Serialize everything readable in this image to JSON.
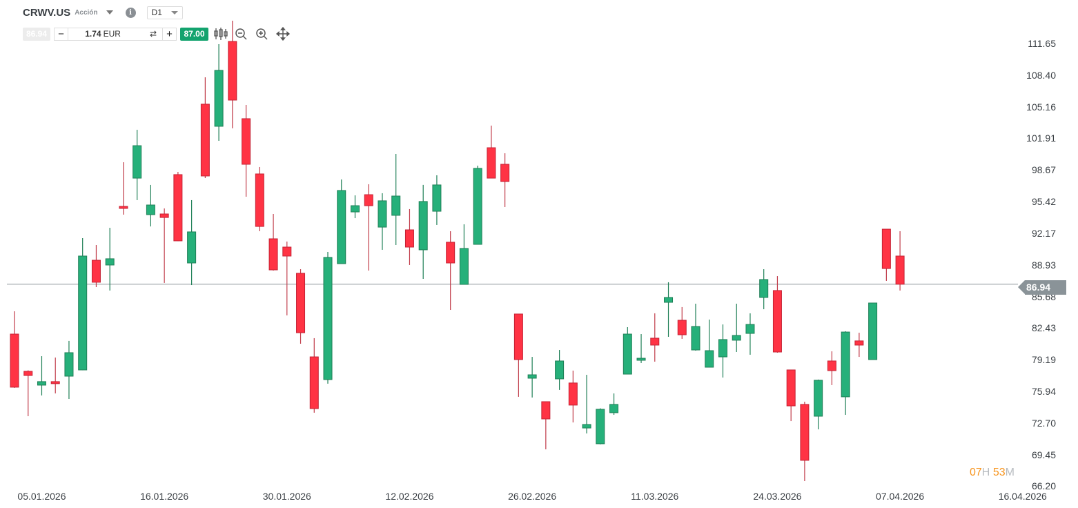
{
  "header": {
    "symbol": "CRWV.US",
    "instrument_type": "Acción",
    "timeframe": "D1",
    "info_icon": "i"
  },
  "trade_bar": {
    "sell_price": "86.94",
    "minus_label": "−",
    "volume_value": "1.74",
    "volume_currency": "EUR",
    "plus_label": "+",
    "buy_price": "87.00",
    "icons": [
      "candlestick-icon",
      "zoom-out-icon",
      "zoom-in-icon",
      "move-icon"
    ]
  },
  "countdown": {
    "hours": "07",
    "h": "H",
    "minutes": "53",
    "m": "M"
  },
  "colors": {
    "up": "#26b07a",
    "down": "#ff3344",
    "price_line": "#8a9398",
    "countdown": "#f7941d",
    "buy": "#13a36e"
  },
  "chart_data": {
    "type": "candlestick",
    "current_price": "86.94",
    "y_ticks": [
      "111.65",
      "108.40",
      "105.16",
      "101.91",
      "98.67",
      "95.42",
      "92.17",
      "88.93",
      "85.68",
      "82.43",
      "79.19",
      "75.94",
      "72.70",
      "69.45",
      "66.20"
    ],
    "ylim": [
      66.2,
      111.65
    ],
    "x_ticks": [
      "05.01.2026",
      "16.01.2026",
      "30.01.2026",
      "12.02.2026",
      "26.02.2026",
      "11.03.2026",
      "24.03.2026",
      "07.04.2026",
      "16.04.2026"
    ],
    "dates": [
      "31.12.2025",
      "02.01.2026",
      "05.01.2026",
      "06.01.2026",
      "07.01.2026",
      "08.01.2026",
      "09.01.2026",
      "12.01.2026",
      "13.01.2026",
      "14.01.2026",
      "15.01.2026",
      "16.01.2026",
      "20.01.2026",
      "21.01.2026",
      "22.01.2026",
      "23.01.2026",
      "26.01.2026",
      "27.01.2026",
      "28.01.2026",
      "29.01.2026",
      "30.01.2026",
      "02.02.2026",
      "03.02.2026",
      "04.02.2026",
      "05.02.2026",
      "06.02.2026",
      "09.02.2026",
      "10.02.2026",
      "11.02.2026",
      "12.02.2026",
      "13.02.2026",
      "17.02.2026",
      "18.02.2026",
      "19.02.2026",
      "20.02.2026",
      "23.02.2026",
      "24.02.2026",
      "25.02.2026",
      "26.02.2026",
      "27.02.2026",
      "02.03.2026",
      "03.03.2026",
      "04.03.2026",
      "05.03.2026",
      "06.03.2026",
      "09.03.2026",
      "10.03.2026",
      "11.03.2026",
      "12.03.2026",
      "13.03.2026",
      "16.03.2026",
      "17.03.2026",
      "18.03.2026",
      "19.03.2026",
      "20.03.2026",
      "23.03.2026",
      "24.03.2026",
      "25.03.2026",
      "26.03.2026",
      "27.03.2026",
      "30.03.2026",
      "31.03.2026",
      "01.04.2026",
      "02.04.2026",
      "06.04.2026",
      "07.04.2026"
    ],
    "ohlc": [
      [
        81.82,
        84.16,
        76.3,
        76.37
      ],
      [
        78.0,
        78.1,
        73.39,
        77.57
      ],
      [
        76.58,
        79.55,
        75.52,
        76.94
      ],
      [
        76.94,
        79.41,
        75.73,
        76.73
      ],
      [
        77.5,
        81.12,
        75.16,
        79.91
      ],
      [
        78.14,
        91.67,
        78.1,
        89.83
      ],
      [
        89.4,
        90.96,
        86.64,
        87.14
      ],
      [
        88.91,
        92.73,
        86.29,
        89.55
      ],
      [
        94.93,
        99.46,
        94.08,
        94.72
      ],
      [
        97.83,
        102.79,
        95.57,
        101.16
      ],
      [
        94.08,
        97.13,
        92.87,
        95.07
      ],
      [
        94.15,
        94.72,
        87.07,
        93.79
      ],
      [
        98.19,
        98.47,
        91.35,
        91.39
      ],
      [
        89.12,
        95.57,
        86.85,
        92.31
      ],
      [
        105.42,
        108.18,
        97.83,
        98.05
      ],
      [
        103.15,
        111.58,
        101.66,
        108.89
      ],
      [
        111.86,
        113.99,
        102.94,
        105.84
      ],
      [
        103.93,
        105.34,
        95.92,
        99.25
      ],
      [
        98.26,
        98.97,
        92.38,
        92.87
      ],
      [
        91.6,
        94.15,
        88.34,
        88.41
      ],
      [
        90.75,
        91.32,
        83.74,
        89.83
      ],
      [
        88.06,
        88.48,
        80.83,
        81.96
      ],
      [
        79.48,
        81.4,
        73.75,
        74.17
      ],
      [
        77.15,
        90.25,
        76.73,
        89.69
      ],
      [
        89.05,
        97.69,
        89.05,
        96.56
      ],
      [
        94.36,
        96.06,
        93.72,
        95.0
      ],
      [
        96.13,
        97.2,
        88.34,
        95.0
      ],
      [
        92.8,
        96.28,
        90.47,
        95.5
      ],
      [
        94.01,
        100.31,
        90.96,
        95.99
      ],
      [
        92.52,
        94.65,
        88.91,
        90.75
      ],
      [
        90.47,
        97.13,
        87.49,
        95.43
      ],
      [
        94.43,
        98.12,
        93.02,
        97.13
      ],
      [
        91.25,
        92.38,
        84.3,
        89.12
      ],
      [
        86.92,
        93.09,
        86.92,
        90.61
      ],
      [
        91.03,
        99.11,
        91.03,
        98.83
      ],
      [
        100.95,
        103.22,
        97.83,
        97.83
      ],
      [
        99.25,
        100.38,
        94.86,
        97.48
      ],
      [
        83.88,
        83.88,
        75.38,
        79.2
      ],
      [
        77.29,
        79.48,
        75.31,
        77.64
      ],
      [
        74.88,
        74.88,
        69.99,
        73.11
      ],
      [
        77.22,
        80.19,
        76.09,
        79.06
      ],
      [
        76.8,
        78.07,
        72.75,
        74.53
      ],
      [
        72.18,
        77.64,
        71.62,
        72.54
      ],
      [
        70.56,
        74.2,
        70.5,
        74.1
      ],
      [
        73.75,
        75.73,
        73.53,
        74.6
      ],
      [
        77.71,
        82.53,
        77.71,
        81.82
      ],
      [
        79.13,
        81.82,
        78.85,
        79.34
      ],
      [
        81.4,
        83.95,
        78.99,
        80.69
      ],
      [
        85.08,
        87.14,
        81.54,
        85.58
      ],
      [
        83.24,
        84.59,
        81.33,
        81.75
      ],
      [
        80.19,
        84.94,
        80.12,
        82.6
      ],
      [
        78.42,
        83.31,
        78.42,
        80.12
      ],
      [
        79.48,
        82.81,
        77.36,
        81.26
      ],
      [
        81.19,
        84.94,
        79.98,
        81.68
      ],
      [
        81.89,
        83.95,
        79.7,
        82.81
      ],
      [
        85.58,
        88.48,
        84.37,
        87.42
      ],
      [
        86.29,
        87.77,
        79.91,
        79.98
      ],
      [
        78.14,
        78.14,
        72.89,
        74.45
      ],
      [
        74.6,
        74.88,
        66.73,
        68.86
      ],
      [
        73.39,
        77.15,
        72.04,
        77.08
      ],
      [
        79.06,
        80.05,
        76.58,
        78.07
      ],
      [
        75.38,
        82.11,
        73.53,
        82.03
      ],
      [
        81.12,
        81.96,
        79.48,
        80.69
      ],
      [
        79.2,
        85.01,
        79.2,
        85.01
      ],
      [
        92.59,
        92.59,
        87.28,
        88.55
      ],
      [
        89.83,
        92.38,
        86.29,
        86.94
      ]
    ]
  }
}
